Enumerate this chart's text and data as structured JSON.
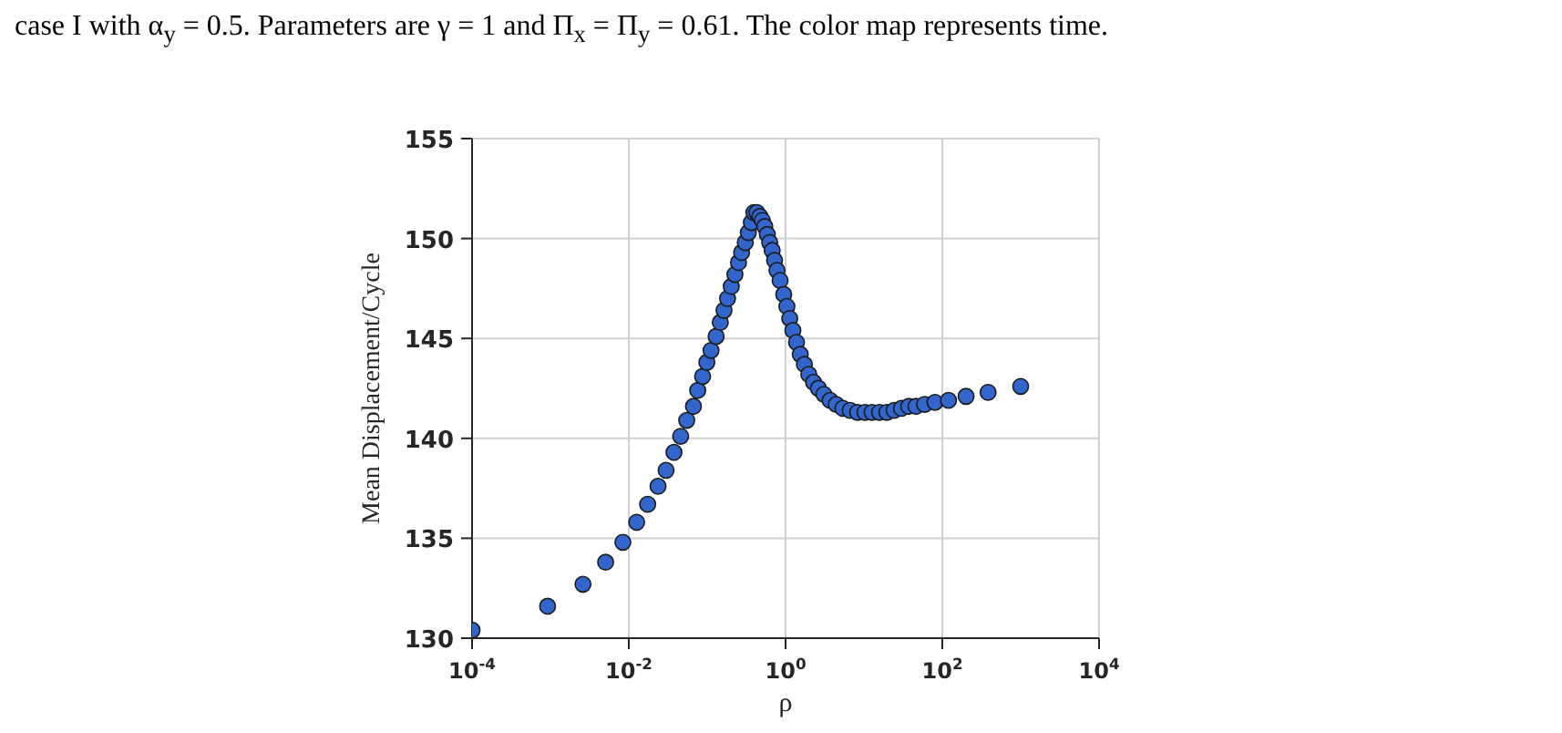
{
  "chart_data": {
    "type": "scatter",
    "annotations": [
      "case I with α$_{y}$ = 0.5. Parameters are γ = 1 and Π$_{x}$ = Π$_{y}$ = 0.61. The color map represents time."
    ],
    "xlabel": "ρ",
    "ylabel": "Mean Displacement/Cycle",
    "log": "x",
    "grid": true,
    "marker": "circle",
    "xlim": [
      0.0001,
      10000
    ],
    "xticks": [
      {
        "value": 0.0001,
        "label": "10$^{-4}$"
      },
      {
        "value": 0.01,
        "label": "10$^{-2}$"
      },
      {
        "value": 1,
        "label": "10$^{0}$"
      },
      {
        "value": 100,
        "label": "10$^{2}$"
      },
      {
        "value": 10000,
        "label": "10$^{4}$"
      }
    ],
    "ylim": [
      130,
      155
    ],
    "yticks": [
      130,
      135,
      140,
      145,
      150,
      155
    ],
    "series": [
      {
        "color": "#3366cc",
        "x": [
          0.0001,
          0.00092,
          0.0026,
          0.00506,
          0.0084,
          0.0126,
          0.0174,
          0.0236,
          0.0299,
          0.0377,
          0.0459,
          0.0548,
          0.0668,
          0.0757,
          0.0874,
          0.099,
          0.112,
          0.13,
          0.147,
          0.164,
          0.182,
          0.203,
          0.226,
          0.251,
          0.275,
          0.306,
          0.335,
          0.366,
          0.394,
          0.431,
          0.471,
          0.506,
          0.543,
          0.585,
          0.628,
          0.675,
          0.724,
          0.778,
          0.851,
          0.948,
          1.04,
          1.13,
          1.24,
          1.38,
          1.54,
          1.74,
          1.98,
          2.28,
          2.63,
          3.09,
          3.7,
          4.43,
          5.38,
          6.68,
          8.28,
          10.3,
          12.7,
          15.8,
          19.6,
          24.3,
          30.1,
          37.3,
          46.2,
          59.4,
          80.7,
          120,
          201,
          384,
          1000
        ],
        "values": [
          130.4,
          131.6,
          132.7,
          133.8,
          134.8,
          135.8,
          136.7,
          137.6,
          138.4,
          139.3,
          140.1,
          140.9,
          141.6,
          142.4,
          143.1,
          143.8,
          144.4,
          145.1,
          145.8,
          146.4,
          147,
          147.6,
          148.2,
          148.8,
          149.3,
          149.8,
          150.3,
          150.8,
          151.3,
          151.3,
          151.1,
          150.9,
          150.6,
          150.2,
          149.8,
          149.4,
          148.9,
          148.4,
          147.9,
          147.2,
          146.6,
          146,
          145.4,
          144.8,
          144.2,
          143.7,
          143.2,
          142.8,
          142.5,
          142.2,
          141.9,
          141.7,
          141.5,
          141.4,
          141.3,
          141.3,
          141.3,
          141.3,
          141.3,
          141.4,
          141.5,
          141.6,
          141.6,
          141.7,
          141.8,
          141.9,
          142.1,
          142.3,
          142.6
        ]
      }
    ]
  }
}
